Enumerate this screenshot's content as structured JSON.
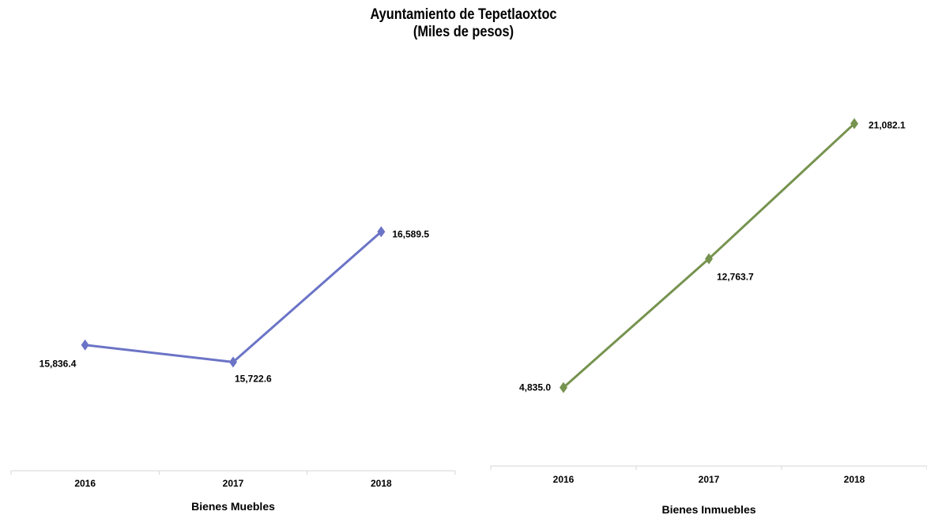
{
  "header": {
    "title": "Ayuntamiento de Tepetlaoxtoc",
    "subtitle": "(Miles de pesos)"
  },
  "chart_data": [
    {
      "type": "line",
      "categories": [
        "2016",
        "2017",
        "2018"
      ],
      "series": [
        {
          "values": [
            15836.4,
            15722.6,
            16589.5
          ],
          "color": "#6b74c6"
        }
      ],
      "data_labels": [
        "15,836.4",
        "15,722.6",
        "16,589.5"
      ],
      "xlabel": "Bienes Muebles",
      "ylabel": "",
      "ylim": [
        15000,
        17500
      ],
      "grid": false,
      "legend": "none"
    },
    {
      "type": "line",
      "categories": [
        "2016",
        "2017",
        "2018"
      ],
      "series": [
        {
          "values": [
            4835.0,
            12763.7,
            21082.1
          ],
          "color": "#76934f"
        }
      ],
      "data_labels": [
        "4,835.0",
        "12,763.7",
        "21,082.1"
      ],
      "xlabel": "Bienes Inmuebles",
      "ylabel": "",
      "ylim": [
        0,
        25000
      ],
      "grid": false,
      "legend": "none"
    }
  ]
}
